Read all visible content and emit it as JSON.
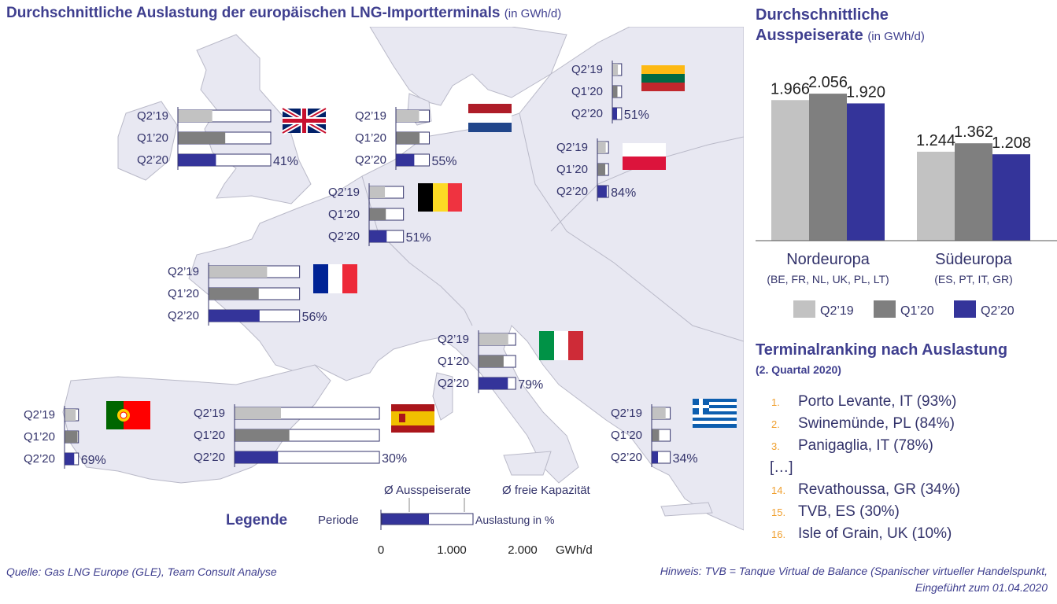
{
  "title": "Durchschnittliche Auslastung der europäischen LNG-Importterminals",
  "title_unit": "(in GWh/d)",
  "colors": {
    "q2_19": "#c2c2c2",
    "q1_20": "#7f7f7f",
    "q2_20": "#34349a",
    "text": "#3f3f8f",
    "map_land": "#e8e8f2",
    "map_border": "#b9b9c8"
  },
  "icons": {
    "uk_flag": "united-kingdom-flag-icon",
    "nl_flag": "netherlands-flag-icon",
    "lt_flag": "lithuania-flag-icon",
    "pl_flag": "poland-flag-icon",
    "be_flag": "belgium-flag-icon",
    "fr_flag": "france-flag-icon",
    "it_flag": "italy-flag-icon",
    "pt_flag": "portugal-flag-icon",
    "es_flag": "spain-flag-icon",
    "gr_flag": "greece-flag-icon"
  },
  "legend": {
    "title": "Legende",
    "period": "Periode",
    "sendout": "Ø Ausspeiserate",
    "free_capacity": "Ø freie Kapazität",
    "utilization": "Auslastung in %",
    "ticks": [
      "0",
      "1.000",
      "2.000"
    ],
    "unit": "GWh/d"
  },
  "right_chart": {
    "title_line1": "Durchschnittliche",
    "title_line2": "Ausspeiserate",
    "unit": "(in GWh/d)",
    "groups": [
      {
        "name": "Nordeuropa",
        "sub": "(BE, FR, NL, UK, PL, LT)"
      },
      {
        "name": "Südeuropa",
        "sub": "(ES, PT, IT,  GR)"
      }
    ],
    "legend": [
      "Q2’19",
      "Q1’20",
      "Q2’20"
    ]
  },
  "ranking": {
    "title": "Terminalranking nach Auslastung",
    "subtitle": "(2. Quartal 2020)",
    "items": [
      {
        "num": "1.",
        "text": "Porto Levante, IT (93%)"
      },
      {
        "num": "2.",
        "text": "Swinemünde,  PL (84%)"
      },
      {
        "num": "3.",
        "text": "Panigaglia,  IT (78%)"
      },
      {
        "num": "",
        "text": "[…]"
      },
      {
        "num": "14.",
        "text": "Revathoussa, GR (34%)"
      },
      {
        "num": "15.",
        "text": "TVB, ES (30%)"
      },
      {
        "num": "16.",
        "text": "Isle of Grain, UK (10%)"
      }
    ]
  },
  "footer": {
    "source": "Quelle: Gas LNG Europe (GLE),  Team Consult Analyse",
    "note_line1": "Hinweis:  TVB =  Tanque Virtual de Balance (Spanischer virtueller Handelspunkt,",
    "note_line2": "Eingeführt zum 01.04.2020"
  },
  "chart_data": [
    {
      "type": "bar",
      "title": "Durchschnittliche Ausspeiserate",
      "ylabel": "GWh/d",
      "categories": [
        "Nordeuropa",
        "Südeuropa"
      ],
      "series": [
        {
          "name": "Q2’19",
          "values": [
            1966,
            1244
          ],
          "labels": [
            "1.966",
            "1.244"
          ]
        },
        {
          "name": "Q1’20",
          "values": [
            2056,
            1362
          ],
          "labels": [
            "2.056",
            "1.362"
          ]
        },
        {
          "name": "Q2’20",
          "values": [
            1920,
            1208
          ],
          "labels": [
            "1.920",
            "1.208"
          ]
        }
      ],
      "ylim": [
        0,
        2200
      ]
    },
    {
      "type": "bar",
      "orientation": "horizontal",
      "title": "Durchschnittliche Auslastung der europäischen LNG-Importterminals",
      "unit": "GWh/d",
      "xlim": [
        0,
        2000
      ],
      "periods": [
        "Q2’19",
        "Q1’20",
        "Q2’20"
      ],
      "countries": [
        {
          "country": "UK",
          "capacity": 1000,
          "sendout": [
            370,
            510,
            410
          ],
          "utilization_label": "41%"
        },
        {
          "country": "NL",
          "capacity": 360,
          "sendout": [
            250,
            255,
            198
          ],
          "utilization_label": "55%"
        },
        {
          "country": "LT",
          "capacity": 100,
          "sendout": [
            60,
            55,
            51
          ],
          "utilization_label": "51%"
        },
        {
          "country": "PL",
          "capacity": 120,
          "sendout": [
            90,
            85,
            101
          ],
          "utilization_label": "84%"
        },
        {
          "country": "BE",
          "capacity": 370,
          "sendout": [
            170,
            180,
            189
          ],
          "utilization_label": "51%"
        },
        {
          "country": "FR",
          "capacity": 980,
          "sendout": [
            630,
            540,
            549
          ],
          "utilization_label": "56%"
        },
        {
          "country": "IT",
          "capacity": 400,
          "sendout": [
            320,
            270,
            316
          ],
          "utilization_label": "79%"
        },
        {
          "country": "PT",
          "capacity": 150,
          "sendout": [
            120,
            140,
            104
          ],
          "utilization_label": "69%"
        },
        {
          "country": "ES",
          "capacity": 1560,
          "sendout": [
            500,
            590,
            468
          ],
          "utilization_label": "30%"
        },
        {
          "country": "GR",
          "capacity": 200,
          "sendout": [
            150,
            80,
            68
          ],
          "utilization_label": "34%"
        }
      ]
    }
  ]
}
